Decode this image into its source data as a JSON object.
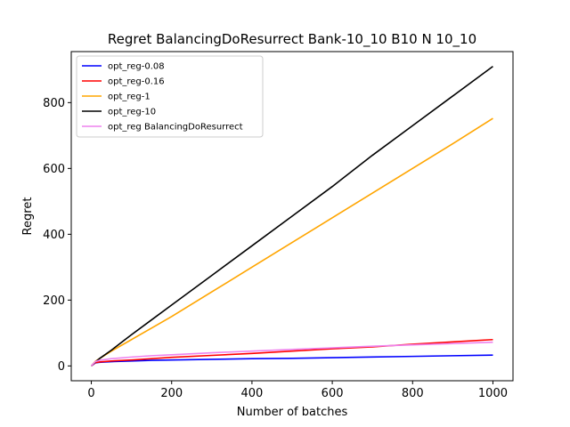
{
  "chart_data": {
    "type": "line",
    "title": "Regret BalancingDoResurrect Bank-10_10 B10 N 10_10",
    "xlabel": "Number of batches",
    "ylabel": "Regret",
    "xlim": [
      -50,
      1050
    ],
    "ylim": [
      -45,
      955
    ],
    "xticks": [
      0,
      200,
      400,
      600,
      800,
      1000
    ],
    "yticks": [
      0,
      200,
      400,
      600,
      800
    ],
    "xtick_labels": [
      "0",
      "200",
      "400",
      "600",
      "800",
      "1000"
    ],
    "ytick_labels": [
      "0",
      "200",
      "400",
      "600",
      "800"
    ],
    "grid": false,
    "legend_position": "top-left",
    "series": [
      {
        "name": "opt_reg-0.08",
        "color": "#0000ff",
        "x": [
          0,
          10,
          20,
          50,
          100,
          150,
          200,
          300,
          400,
          500,
          600,
          700,
          800,
          900,
          1000
        ],
        "y": [
          0,
          9,
          11,
          13,
          15,
          17,
          18,
          20,
          22,
          23,
          25,
          27,
          29,
          31,
          33
        ]
      },
      {
        "name": "opt_reg-0.16",
        "color": "#ff0000",
        "x": [
          0,
          10,
          20,
          50,
          100,
          150,
          200,
          300,
          400,
          500,
          600,
          700,
          800,
          900,
          1000
        ],
        "y": [
          0,
          10,
          12,
          15,
          18,
          22,
          26,
          32,
          38,
          45,
          52,
          58,
          66,
          73,
          80
        ]
      },
      {
        "name": "opt_reg-1",
        "color": "#ffa500",
        "x": [
          0,
          10,
          20,
          50,
          100,
          150,
          200,
          300,
          400,
          500,
          600,
          700,
          800,
          900,
          1000
        ],
        "y": [
          0,
          14,
          22,
          45,
          80,
          115,
          150,
          225,
          300,
          375,
          450,
          525,
          600,
          675,
          752
        ]
      },
      {
        "name": "opt_reg-10",
        "color": "#000000",
        "x": [
          0,
          10,
          20,
          50,
          100,
          150,
          200,
          300,
          400,
          500,
          600,
          700,
          800,
          900,
          1000
        ],
        "y": [
          0,
          12,
          22,
          48,
          95,
          140,
          185,
          275,
          365,
          455,
          545,
          640,
          730,
          820,
          910
        ]
      },
      {
        "name": "opt_reg BalancingDoResurrect",
        "color": "#ee82ee",
        "x": [
          0,
          10,
          20,
          50,
          100,
          150,
          200,
          300,
          400,
          500,
          600,
          700,
          800,
          900,
          1000
        ],
        "y": [
          0,
          13,
          17,
          22,
          27,
          31,
          34,
          40,
          45,
          50,
          55,
          60,
          64,
          68,
          72
        ]
      }
    ]
  }
}
